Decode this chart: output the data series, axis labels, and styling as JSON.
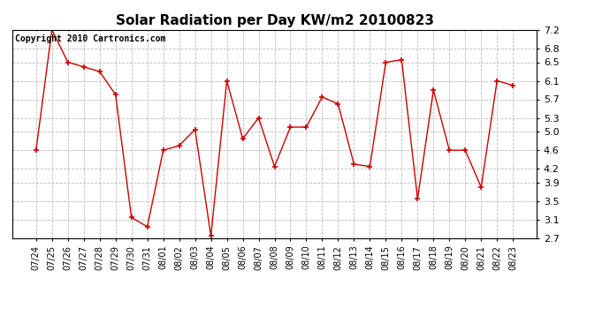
{
  "title": "Solar Radiation per Day KW/m2 20100823",
  "copyright_text": "Copyright 2010 Cartronics.com",
  "labels": [
    "07/24",
    "07/25",
    "07/26",
    "07/27",
    "07/28",
    "07/29",
    "07/30",
    "07/31",
    "08/01",
    "08/02",
    "08/03",
    "08/04",
    "08/05",
    "08/06",
    "08/07",
    "08/08",
    "08/09",
    "08/10",
    "08/11",
    "08/12",
    "08/13",
    "08/14",
    "08/15",
    "08/16",
    "08/17",
    "08/18",
    "08/19",
    "08/20",
    "08/21",
    "08/22",
    "08/23"
  ],
  "values": [
    4.6,
    7.2,
    6.5,
    6.4,
    6.3,
    5.8,
    3.15,
    2.95,
    4.6,
    4.7,
    5.05,
    2.75,
    6.1,
    4.85,
    5.3,
    4.25,
    5.1,
    5.1,
    5.75,
    5.6,
    4.3,
    4.25,
    6.5,
    6.55,
    3.55,
    5.9,
    4.6,
    4.6,
    3.8,
    6.1,
    6.0
  ],
  "line_color": "#cc0000",
  "marker": "+",
  "marker_size": 5,
  "ylim": [
    2.7,
    7.2
  ],
  "yticks": [
    2.7,
    3.1,
    3.5,
    3.9,
    4.2,
    4.6,
    5.0,
    5.3,
    5.7,
    6.1,
    6.5,
    6.8,
    7.2
  ],
  "ytick_labels": [
    "2.7",
    "3.1",
    "3.5",
    "3.9",
    "4.2",
    "4.6",
    "5.0",
    "5.3",
    "5.7",
    "6.1",
    "6.5",
    "6.8",
    "7.2"
  ],
  "grid_color": "#bbbbbb",
  "bg_color": "#ffffff",
  "title_fontsize": 11,
  "copyright_fontsize": 7,
  "tick_fontsize": 7,
  "ytick_fontsize": 8
}
